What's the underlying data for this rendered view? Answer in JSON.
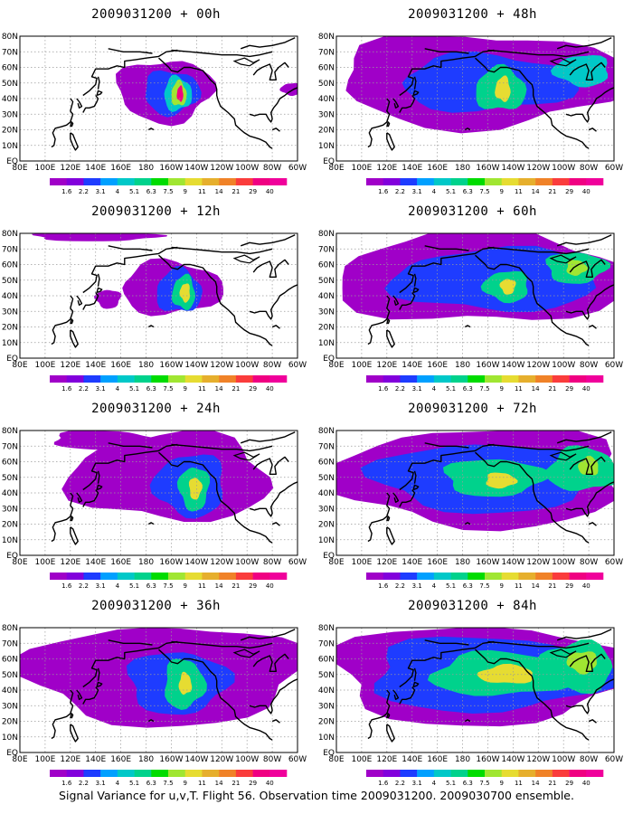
{
  "panels": [
    {
      "title": "2009031200 + 00h",
      "lead_hours": 0
    },
    {
      "title": "2009031200 + 48h",
      "lead_hours": 48
    },
    {
      "title": "2009031200 + 12h",
      "lead_hours": 12
    },
    {
      "title": "2009031200 + 60h",
      "lead_hours": 60
    },
    {
      "title": "2009031200 + 24h",
      "lead_hours": 24
    },
    {
      "title": "2009031200 + 72h",
      "lead_hours": 72
    },
    {
      "title": "2009031200 + 36h",
      "lead_hours": 36
    },
    {
      "title": "2009031200 + 84h",
      "lead_hours": 84
    }
  ],
  "latitude_labels": [
    "EQ",
    "10N",
    "20N",
    "30N",
    "40N",
    "50N",
    "60N",
    "70N",
    "80N"
  ],
  "longitude_labels": [
    "80E",
    "100E",
    "120E",
    "140E",
    "160E",
    "180",
    "160W",
    "140W",
    "120W",
    "100W",
    "80W",
    "60W"
  ],
  "colorbar": {
    "levels": [
      "1.6",
      "2.2",
      "3.1",
      "4",
      "5.1",
      "6.3",
      "7.5",
      "9",
      "11",
      "14",
      "21",
      "29",
      "40"
    ],
    "colors": [
      "#a000c8",
      "#8200dc",
      "#1e3cff",
      "#00a0ff",
      "#00c8c8",
      "#00d28c",
      "#00dc00",
      "#a0e632",
      "#e6dc32",
      "#e6af2d",
      "#f08228",
      "#fa3c3c",
      "#f00082",
      "#f0009b"
    ]
  },
  "map_colors": {
    "coastline": "#000000",
    "grid": "#9a9a9a",
    "background": "#ffffff"
  },
  "caption": "Signal Variance for u,v,T. Flight 56. Observation time 2009031200. 2009030700 ensemble."
}
